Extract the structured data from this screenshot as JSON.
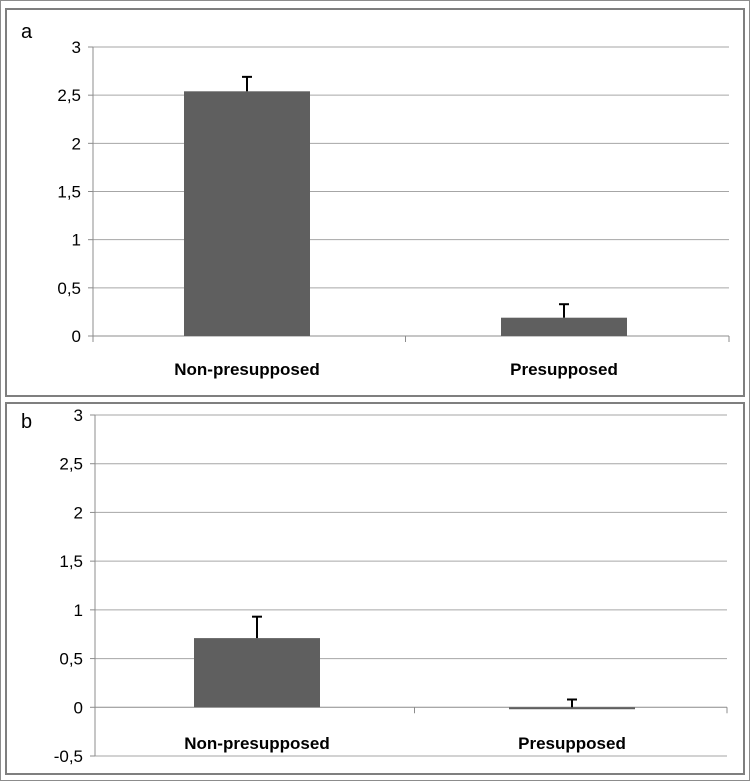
{
  "chart_data": [
    {
      "panel_label": "a",
      "type": "bar",
      "categories": [
        "Non-presupposed",
        "Presupposed"
      ],
      "values": [
        2.54,
        0.19
      ],
      "error_upper": [
        0.15,
        0.14
      ],
      "yticks": [
        "0",
        "0,5",
        "1",
        "1,5",
        "2",
        "2,5",
        "3"
      ],
      "ylim": [
        0,
        3
      ],
      "grid": true,
      "bar_color": "#5f5f5f",
      "legend": "none"
    },
    {
      "panel_label": "b",
      "type": "bar",
      "categories": [
        "Non-presupposed",
        "Presupposed"
      ],
      "values": [
        0.71,
        -0.02
      ],
      "error_upper": [
        0.22,
        0.1
      ],
      "yticks": [
        "-0,5",
        "0",
        "0,5",
        "1",
        "1,5",
        "2",
        "2,5",
        "3"
      ],
      "ylim": [
        -0.5,
        3
      ],
      "grid": true,
      "bar_color": "#5f5f5f",
      "legend": "none"
    }
  ]
}
